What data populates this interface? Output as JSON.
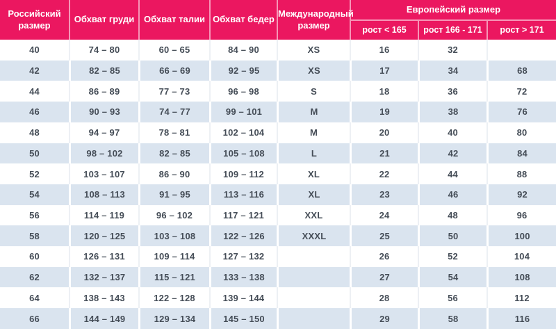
{
  "chart_data": {
    "type": "table",
    "header": {
      "russian_size": "Российский размер",
      "chest": "Обхват груди",
      "waist": "Обхват талии",
      "hips": "Обхват бедер",
      "international_size": "Международный размер",
      "european_size_group": "Европейский размер",
      "height_lt_165": "рост < 165",
      "height_166_171": "рост 166 - 171",
      "height_gt_171": "рост > 171"
    },
    "rows": [
      [
        "40",
        "74 – 80",
        "60 – 65",
        "84 – 90",
        "XS",
        "16",
        "32",
        ""
      ],
      [
        "42",
        "82 – 85",
        "66 – 69",
        "92 – 95",
        "XS",
        "17",
        "34",
        "68"
      ],
      [
        "44",
        "86 – 89",
        "77 – 73",
        "96 – 98",
        "S",
        "18",
        "36",
        "72"
      ],
      [
        "46",
        "90 – 93",
        "74 – 77",
        "99 – 101",
        "M",
        "19",
        "38",
        "76"
      ],
      [
        "48",
        "94 – 97",
        "78 – 81",
        "102 – 104",
        "M",
        "20",
        "40",
        "80"
      ],
      [
        "50",
        "98 – 102",
        "82 – 85",
        "105 – 108",
        "L",
        "21",
        "42",
        "84"
      ],
      [
        "52",
        "103 – 107",
        "86 – 90",
        "109 – 112",
        "XL",
        "22",
        "44",
        "88"
      ],
      [
        "54",
        "108 – 113",
        "91 – 95",
        "113 – 116",
        "XL",
        "23",
        "46",
        "92"
      ],
      [
        "56",
        "114 – 119",
        "96 – 102",
        "117 – 121",
        "XXL",
        "24",
        "48",
        "96"
      ],
      [
        "58",
        "120 – 125",
        "103 – 108",
        "122 – 126",
        "XXXL",
        "25",
        "50",
        "100"
      ],
      [
        "60",
        "126 – 131",
        "109 – 114",
        "127 – 132",
        "",
        "26",
        "52",
        "104"
      ],
      [
        "62",
        "132 – 137",
        "115 – 121",
        "133 – 138",
        "",
        "27",
        "54",
        "108"
      ],
      [
        "64",
        "138 – 143",
        "122 – 128",
        "139 – 144",
        "",
        "28",
        "56",
        "112"
      ],
      [
        "66",
        "144 – 149",
        "129 – 134",
        "145 – 150",
        "",
        "29",
        "58",
        "116"
      ]
    ]
  },
  "colors": {
    "header_bg": "#EB1760",
    "header_text": "#FFFFFF",
    "row_even_bg": "#FFFFFF",
    "row_odd_bg": "#DAE4EF",
    "cell_text": "#454D57"
  }
}
